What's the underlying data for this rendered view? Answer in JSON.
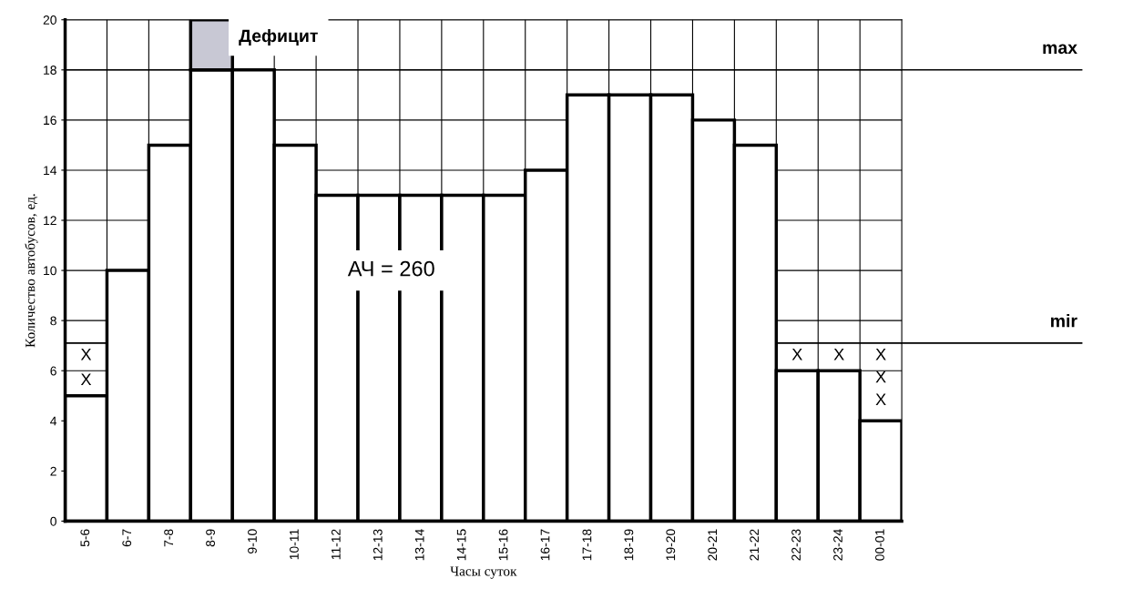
{
  "chart_data": {
    "type": "bar",
    "xlabel": "Часы суток",
    "ylabel": "Количество автобусов, ед.",
    "categories": [
      "5-6",
      "6-7",
      "7-8",
      "8-9",
      "9-10",
      "10-11",
      "11-12",
      "12-13",
      "13-14",
      "14-15",
      "15-16",
      "16-17",
      "17-18",
      "18-19",
      "19-20",
      "20-21",
      "21-22",
      "22-23",
      "23-24",
      "00-01"
    ],
    "stacked": true,
    "series": [
      {
        "color": "#ffffff",
        "values": [
          5,
          10,
          15,
          18,
          18,
          15,
          13,
          13,
          13,
          13,
          13,
          14,
          17,
          17,
          17,
          16,
          15,
          6,
          6,
          4
        ]
      },
      {
        "color": "#c8c8d4",
        "values": [
          null,
          null,
          null,
          2,
          null,
          null,
          null,
          null,
          null,
          null,
          null,
          null,
          null,
          null,
          null,
          null,
          null,
          null,
          null,
          null
        ]
      }
    ],
    "ylim": [
      0,
      20
    ],
    "yticks": [
      0,
      2,
      4,
      6,
      8,
      10,
      12,
      14,
      16,
      18,
      20
    ],
    "grid": true,
    "ref_lines": [
      {
        "axis": "y",
        "value": 18,
        "label": "max"
      },
      {
        "axis": "y",
        "value": 7.1,
        "label": "mir"
      }
    ],
    "annotations": [
      "Дефицит",
      "АЧ = 260",
      "X",
      "X",
      "X",
      "X",
      "X",
      "X",
      "X"
    ]
  }
}
